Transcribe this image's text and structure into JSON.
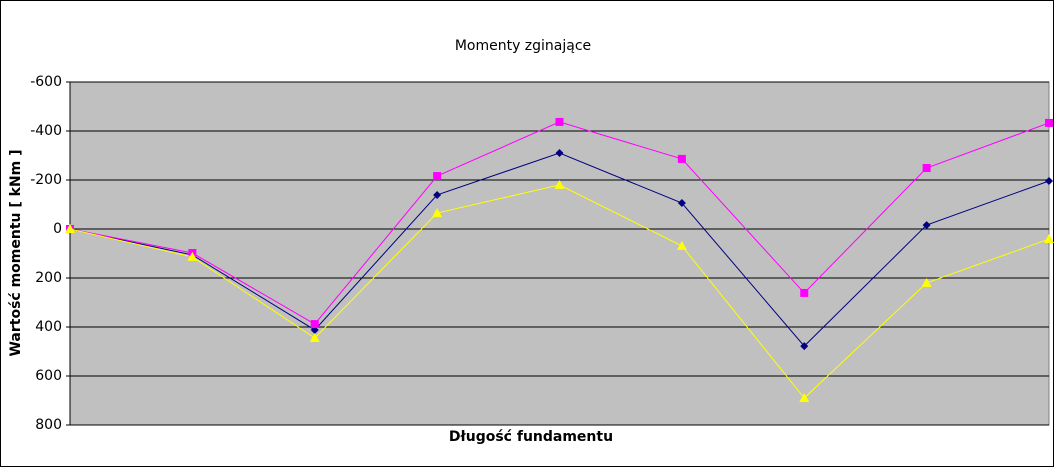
{
  "chart_data": {
    "type": "line",
    "title": "Momenty zginające",
    "x_label": "Długość fundamentu",
    "y_label": "Wartość momentu [ kNm ]",
    "categories": [
      null,
      null,
      null,
      null,
      null,
      null,
      null,
      null,
      null
    ],
    "series": [
      {
        "color": "#000080",
        "marker": "diamond",
        "values": [
          0,
          106,
          412,
          -139,
          -310,
          -106,
          478,
          -16,
          -196
        ]
      },
      {
        "color": "#ff00ff",
        "marker": "square",
        "values": [
          0,
          98,
          388,
          -216,
          -437,
          -286,
          261,
          -249,
          -433
        ]
      },
      {
        "color": "#ffff00",
        "marker": "triangle",
        "values": [
          0,
          114,
          445,
          -65,
          -180,
          69,
          690,
          220,
          41
        ]
      }
    ],
    "ylim": [
      -600,
      800
    ],
    "invert_y": true,
    "yticks": [
      -600,
      -400,
      -200,
      0,
      200,
      400,
      600,
      800
    ],
    "grid": true,
    "plot_background": "#c0c0c0"
  }
}
